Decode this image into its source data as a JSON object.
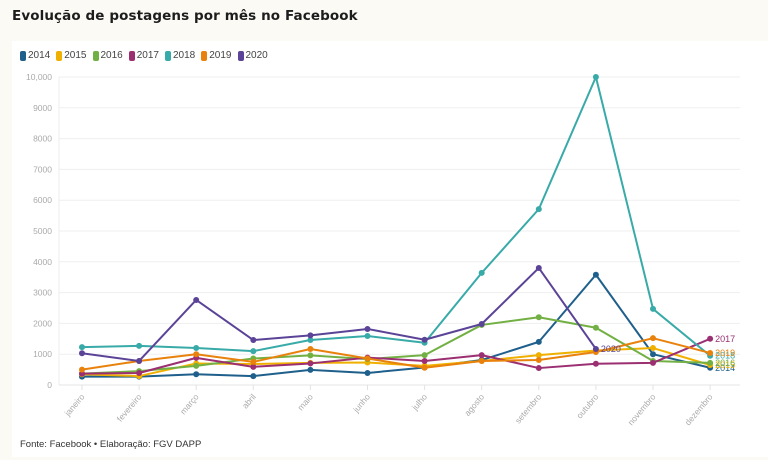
{
  "header": {
    "title": "Evolução de postagens por mês no Facebook"
  },
  "footer": {
    "source": "Fonte: Facebook • Elaboração: FGV DAPP"
  },
  "chart_data": {
    "type": "line",
    "title": "Evolução de postagens por mês no Facebook",
    "xlabel": "",
    "ylabel": "",
    "ylim": [
      0,
      10000
    ],
    "yticks": [
      0,
      1000,
      2000,
      3000,
      4000,
      5000,
      6000,
      7000,
      8000,
      9000,
      10000
    ],
    "ytick_labels": [
      "0",
      "1000",
      "2000",
      "3000",
      "4000",
      "5000",
      "6000",
      "7000",
      "8000",
      "9000",
      "10,000"
    ],
    "grid": true,
    "legend_position": "top-left",
    "categories": [
      "janeiro",
      "fevereiro",
      "março",
      "abril",
      "maio",
      "junho",
      "julho",
      "agosto",
      "setembro",
      "outubro",
      "novembro",
      "dezembro"
    ],
    "series": [
      {
        "name": "2014",
        "color": "#1f5f8b",
        "values": [
          270,
          270,
          350,
          290,
          490,
          390,
          570,
          810,
          1400,
          3580,
          1000,
          560
        ]
      },
      {
        "name": "2015",
        "color": "#f0b000",
        "values": [
          350,
          290,
          700,
          680,
          720,
          730,
          620,
          780,
          970,
          1120,
          1200,
          650
        ]
      },
      {
        "name": "2016",
        "color": "#72b043",
        "values": [
          370,
          450,
          620,
          860,
          960,
          840,
          970,
          1950,
          2200,
          1860,
          780,
          720
        ]
      },
      {
        "name": "2017",
        "color": "#9b2f72",
        "values": [
          370,
          390,
          880,
          590,
          700,
          890,
          780,
          970,
          550,
          690,
          720,
          1500
        ]
      },
      {
        "name": "2018",
        "color": "#38aaa8",
        "values": [
          1230,
          1270,
          1200,
          1100,
          1460,
          1590,
          1370,
          3640,
          5710,
          10000,
          2470,
          950
        ]
      },
      {
        "name": "2019",
        "color": "#e8820c",
        "values": [
          500,
          780,
          1000,
          750,
          1170,
          860,
          560,
          780,
          810,
          1070,
          1520,
          1040
        ]
      },
      {
        "name": "2020",
        "color": "#5b4397",
        "values": [
          1030,
          780,
          2760,
          1460,
          1610,
          1820,
          1470,
          1980,
          3800,
          1170,
          null,
          null
        ]
      }
    ],
    "end_labels": [
      "2014",
      "2015",
      "2016",
      "2017",
      "2018",
      "2019",
      "2020"
    ]
  }
}
